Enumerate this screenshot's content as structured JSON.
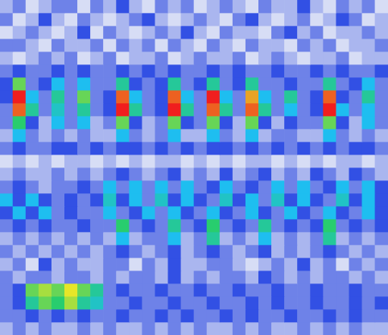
{
  "chart_data": {
    "type": "heatmap",
    "grid": false,
    "tick_labels": false,
    "cells": [
      [
        0.2,
        0.3,
        0.1,
        0.2,
        0.3,
        0.3,
        0.1,
        0.3,
        0.2,
        0.4,
        0.2,
        0.1,
        0.3,
        0.2,
        0.3,
        0.1,
        0.2,
        0.3,
        0.2,
        0.1,
        0.3,
        0.2,
        0.2,
        0.4,
        0.2,
        0.1,
        0.3,
        0.2,
        0.3,
        0.1
      ],
      [
        0.3,
        0.1,
        0.2,
        0.4,
        0.2,
        0.1,
        0.3,
        0.2,
        0.1,
        0.2,
        0.3,
        0.4,
        0.2,
        0.1,
        0.2,
        0.3,
        0.2,
        0.1,
        0.3,
        0.4,
        0.2,
        0.1,
        0.2,
        0.3,
        0.1,
        0.2,
        0.4,
        0.3,
        0.1,
        0.2
      ],
      [
        0.1,
        0.2,
        0.3,
        0.2,
        0.1,
        0.2,
        0.4,
        0.1,
        0.3,
        0.2,
        0.1,
        0.2,
        0.3,
        0.2,
        0.4,
        0.2,
        0.1,
        0.3,
        0.2,
        0.2,
        0.1,
        0.3,
        0.4,
        0.2,
        0.3,
        0.1,
        0.2,
        0.2,
        0.3,
        0.2
      ],
      [
        0.3,
        0.3,
        0.2,
        0.1,
        0.3,
        0.2,
        0.2,
        0.3,
        0.1,
        0.3,
        0.2,
        0.3,
        0.1,
        0.3,
        0.2,
        0.1,
        0.3,
        0.2,
        0.1,
        0.3,
        0.2,
        0.2,
        0.1,
        0.3,
        0.2,
        0.3,
        0.1,
        0.2,
        0.2,
        0.3
      ],
      [
        0.2,
        0.1,
        0.2,
        0.3,
        0.2,
        0.3,
        0.1,
        0.2,
        0.3,
        0.1,
        0.2,
        0.2,
        0.3,
        0.1,
        0.2,
        0.3,
        0.2,
        0.2,
        0.3,
        0.1,
        0.2,
        0.3,
        0.2,
        0.1,
        0.2,
        0.2,
        0.3,
        0.1,
        0.2,
        0.2
      ],
      [
        0.3,
        0.4,
        0.3,
        0.3,
        0.4,
        0.3,
        0.4,
        0.3,
        0.3,
        0.4,
        0.3,
        0.4,
        0.3,
        0.4,
        0.3,
        0.3,
        0.4,
        0.3,
        0.4,
        0.3,
        0.3,
        0.4,
        0.3,
        0.3,
        0.4,
        0.3,
        0.4,
        0.3,
        0.3,
        0.4
      ],
      [
        0.4,
        0.7,
        0.3,
        0.4,
        0.5,
        0.3,
        0.5,
        0.3,
        0.3,
        0.6,
        0.4,
        0.3,
        0.4,
        0.6,
        0.3,
        0.4,
        0.6,
        0.3,
        0.4,
        0.6,
        0.3,
        0.3,
        0.4,
        0.3,
        0.3,
        0.6,
        0.3,
        0.4,
        0.5,
        0.3
      ],
      [
        0.4,
        0.95,
        0.5,
        0.3,
        0.6,
        0.3,
        0.7,
        0.3,
        0.4,
        0.9,
        0.5,
        0.3,
        0.4,
        0.9,
        0.5,
        0.3,
        0.95,
        0.5,
        0.3,
        0.85,
        0.5,
        0.3,
        0.6,
        0.3,
        0.4,
        0.9,
        0.4,
        0.3,
        0.6,
        0.3
      ],
      [
        0.3,
        0.9,
        0.6,
        0.3,
        0.55,
        0.3,
        0.6,
        0.3,
        0.4,
        0.95,
        0.6,
        0.3,
        0.4,
        0.95,
        0.6,
        0.3,
        0.9,
        0.6,
        0.3,
        0.9,
        0.6,
        0.3,
        0.5,
        0.3,
        0.4,
        0.95,
        0.5,
        0.3,
        0.5,
        0.3
      ],
      [
        0.3,
        0.65,
        0.4,
        0.2,
        0.5,
        0.3,
        0.5,
        0.2,
        0.3,
        0.7,
        0.4,
        0.2,
        0.3,
        0.7,
        0.4,
        0.3,
        0.7,
        0.4,
        0.2,
        0.7,
        0.4,
        0.2,
        0.4,
        0.3,
        0.3,
        0.7,
        0.4,
        0.2,
        0.5,
        0.3
      ],
      [
        0.2,
        0.5,
        0.3,
        0.2,
        0.3,
        0.2,
        0.3,
        0.2,
        0.2,
        0.5,
        0.3,
        0.2,
        0.3,
        0.5,
        0.2,
        0.2,
        0.5,
        0.3,
        0.2,
        0.5,
        0.2,
        0.3,
        0.3,
        0.2,
        0.2,
        0.5,
        0.3,
        0.2,
        0.3,
        0.2
      ],
      [
        0.3,
        0.4,
        0.3,
        0.3,
        0.4,
        0.4,
        0.3,
        0.4,
        0.3,
        0.4,
        0.4,
        0.3,
        0.4,
        0.3,
        0.4,
        0.3,
        0.4,
        0.4,
        0.3,
        0.4,
        0.3,
        0.4,
        0.3,
        0.4,
        0.3,
        0.4,
        0.3,
        0.4,
        0.4,
        0.3
      ],
      [
        0.1,
        0.2,
        0.1,
        0.2,
        0.1,
        0.2,
        0.2,
        0.1,
        0.2,
        0.1,
        0.2,
        0.1,
        0.2,
        0.2,
        0.1,
        0.2,
        0.1,
        0.2,
        0.1,
        0.2,
        0.2,
        0.1,
        0.2,
        0.1,
        0.2,
        0.1,
        0.2,
        0.2,
        0.1,
        0.2
      ],
      [
        0.2,
        0.3,
        0.2,
        0.2,
        0.3,
        0.2,
        0.3,
        0.2,
        0.3,
        0.4,
        0.3,
        0.2,
        0.3,
        0.4,
        0.2,
        0.3,
        0.2,
        0.4,
        0.2,
        0.3,
        0.4,
        0.2,
        0.3,
        0.2,
        0.4,
        0.3,
        0.2,
        0.4,
        0.3,
        0.2
      ],
      [
        0.3,
        0.4,
        0.3,
        0.2,
        0.3,
        0.3,
        0.4,
        0.3,
        0.5,
        0.3,
        0.5,
        0.3,
        0.5,
        0.3,
        0.5,
        0.3,
        0.4,
        0.5,
        0.3,
        0.4,
        0.3,
        0.5,
        0.3,
        0.5,
        0.3,
        0.4,
        0.5,
        0.3,
        0.5,
        0.4
      ],
      [
        0.5,
        0.4,
        0.5,
        0.4,
        0.3,
        0.4,
        0.3,
        0.4,
        0.55,
        0.4,
        0.5,
        0.3,
        0.55,
        0.4,
        0.5,
        0.4,
        0.3,
        0.55,
        0.4,
        0.5,
        0.3,
        0.55,
        0.4,
        0.5,
        0.4,
        0.3,
        0.55,
        0.4,
        0.5,
        0.4
      ],
      [
        0.4,
        0.5,
        0.4,
        0.5,
        0.3,
        0.4,
        0.3,
        0.3,
        0.5,
        0.3,
        0.4,
        0.5,
        0.3,
        0.5,
        0.4,
        0.3,
        0.5,
        0.4,
        0.3,
        0.5,
        0.4,
        0.3,
        0.5,
        0.4,
        0.3,
        0.5,
        0.4,
        0.3,
        0.5,
        0.4
      ],
      [
        0.3,
        0.4,
        0.3,
        0.4,
        0.3,
        0.3,
        0.4,
        0.3,
        0.3,
        0.65,
        0.3,
        0.4,
        0.3,
        0.6,
        0.3,
        0.4,
        0.65,
        0.3,
        0.4,
        0.3,
        0.6,
        0.3,
        0.4,
        0.3,
        0.4,
        0.65,
        0.3,
        0.4,
        0.3,
        0.4
      ],
      [
        0.2,
        0.3,
        0.2,
        0.3,
        0.2,
        0.3,
        0.2,
        0.3,
        0.2,
        0.5,
        0.2,
        0.3,
        0.3,
        0.5,
        0.2,
        0.3,
        0.6,
        0.2,
        0.3,
        0.2,
        0.5,
        0.2,
        0.3,
        0.2,
        0.3,
        0.6,
        0.2,
        0.3,
        0.2,
        0.3
      ],
      [
        0.3,
        0.2,
        0.3,
        0.2,
        0.3,
        0.2,
        0.3,
        0.2,
        0.3,
        0.4,
        0.3,
        0.2,
        0.3,
        0.4,
        0.2,
        0.3,
        0.4,
        0.3,
        0.2,
        0.3,
        0.4,
        0.2,
        0.3,
        0.2,
        0.3,
        0.4,
        0.3,
        0.2,
        0.3,
        0.2
      ],
      [
        0.2,
        0.3,
        0.1,
        0.4,
        0.2,
        0.3,
        0.2,
        0.2,
        0.3,
        0.3,
        0.1,
        0.3,
        0.2,
        0.4,
        0.2,
        0.2,
        0.3,
        0.3,
        0.2,
        0.1,
        0.2,
        0.3,
        0.2,
        0.4,
        0.2,
        0.3,
        0.1,
        0.3,
        0.2,
        0.3
      ],
      [
        0.3,
        0.2,
        0.3,
        0.3,
        0.2,
        0.3,
        0.3,
        0.2,
        0.3,
        0.2,
        0.3,
        0.3,
        0.2,
        0.4,
        0.2,
        0.3,
        0.2,
        0.3,
        0.3,
        0.2,
        0.4,
        0.3,
        0.2,
        0.3,
        0.2,
        0.3,
        0.3,
        0.2,
        0.3,
        0.2
      ],
      [
        0.3,
        0.4,
        0.7,
        0.75,
        0.7,
        0.8,
        0.7,
        0.6,
        0.3,
        0.4,
        0.3,
        0.3,
        0.4,
        0.3,
        0.3,
        0.4,
        0.3,
        0.3,
        0.4,
        0.3,
        0.3,
        0.4,
        0.3,
        0.3,
        0.4,
        0.3,
        0.3,
        0.4,
        0.3,
        0.3
      ],
      [
        0.3,
        0.4,
        0.6,
        0.7,
        0.65,
        0.75,
        0.6,
        0.55,
        0.3,
        0.3,
        0.4,
        0.3,
        0.3,
        0.4,
        0.3,
        0.3,
        0.4,
        0.3,
        0.3,
        0.4,
        0.3,
        0.4,
        0.3,
        0.3,
        0.4,
        0.3,
        0.3,
        0.4,
        0.3,
        0.4
      ],
      [
        0.3,
        0.3,
        0.4,
        0.3,
        0.4,
        0.3,
        0.4,
        0.3,
        0.3,
        0.4,
        0.3,
        0.3,
        0.4,
        0.3,
        0.4,
        0.3,
        0.3,
        0.4,
        0.3,
        0.4,
        0.3,
        0.3,
        0.4,
        0.3,
        0.3,
        0.4,
        0.3,
        0.4,
        0.3,
        0.3
      ],
      [
        0.2,
        0.3,
        0.2,
        0.3,
        0.2,
        0.2,
        0.3,
        0.2,
        0.3,
        0.2,
        0.2,
        0.3,
        0.2,
        0.3,
        0.2,
        0.3,
        0.2,
        0.2,
        0.3,
        0.2,
        0.3,
        0.2,
        0.2,
        0.3,
        0.2,
        0.3,
        0.2,
        0.3,
        0.2,
        0.2
      ]
    ]
  }
}
